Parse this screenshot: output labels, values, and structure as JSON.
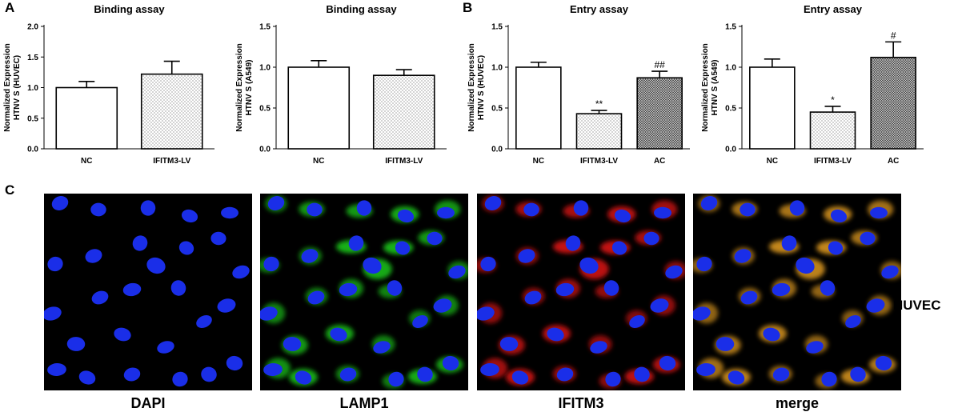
{
  "panels": [
    "A",
    "B",
    "C"
  ],
  "chart_data": [
    {
      "type": "bar",
      "title": "Binding assay",
      "ylabel_line1": "Normalized Expression",
      "ylabel_line2": "HTNV S (HUVEC)",
      "ylim": [
        0,
        2.0
      ],
      "yticks": [
        0,
        0.5,
        1.0,
        1.5,
        2.0
      ],
      "ytick_labels": [
        "0.0",
        "0.5",
        "1.0",
        "1.5",
        "2.0"
      ],
      "categories": [
        "NC",
        "IFITM3-LV"
      ],
      "values": [
        1.0,
        1.22
      ],
      "errors": [
        0.1,
        0.21
      ],
      "patterns": [
        "white",
        "dots"
      ],
      "annotations": [
        "",
        ""
      ]
    },
    {
      "type": "bar",
      "title": "Binding assay",
      "ylabel_line1": "Normalized Expression",
      "ylabel_line2": "HTNV S (A549)",
      "ylim": [
        0,
        1.5
      ],
      "yticks": [
        0,
        0.5,
        1.0,
        1.5
      ],
      "ytick_labels": [
        "0.0",
        "0.5",
        "1.0",
        "1.5"
      ],
      "categories": [
        "NC",
        "IFITM3-LV"
      ],
      "values": [
        1.0,
        0.9
      ],
      "errors": [
        0.08,
        0.07
      ],
      "patterns": [
        "white",
        "dots"
      ],
      "annotations": [
        "",
        ""
      ]
    },
    {
      "type": "bar",
      "title": "Entry assay",
      "ylabel_line1": "Normalized Expression",
      "ylabel_line2": "HTNV S (HUVEC)",
      "ylim": [
        0,
        1.5
      ],
      "yticks": [
        0,
        0.5,
        1.0,
        1.5
      ],
      "ytick_labels": [
        "0.0",
        "0.5",
        "1.0",
        "1.5"
      ],
      "categories": [
        "NC",
        "IFITM3-LV",
        "AC"
      ],
      "values": [
        1.0,
        0.43,
        0.87
      ],
      "errors": [
        0.06,
        0.04,
        0.08
      ],
      "patterns": [
        "white",
        "dots",
        "cross"
      ],
      "annotations": [
        "",
        "**",
        "##"
      ]
    },
    {
      "type": "bar",
      "title": "Entry assay",
      "ylabel_line1": "Normalized Expression",
      "ylabel_line2": "HTNV S (A549)",
      "ylim": [
        0,
        1.5
      ],
      "yticks": [
        0,
        0.5,
        1.0,
        1.5
      ],
      "ytick_labels": [
        "0.0",
        "0.5",
        "1.0",
        "1.5"
      ],
      "categories": [
        "NC",
        "IFITM3-LV",
        "AC"
      ],
      "values": [
        1.0,
        0.45,
        1.12
      ],
      "errors": [
        0.1,
        0.07,
        0.19
      ],
      "patterns": [
        "white",
        "dots",
        "cross"
      ],
      "annotations": [
        "",
        "*",
        "#"
      ]
    }
  ],
  "micrographs": [
    {
      "label": "DAPI",
      "stain": "dapi"
    },
    {
      "label": "LAMP1",
      "stain": "lamp1"
    },
    {
      "label": "IFITM3",
      "stain": "ifitm3"
    },
    {
      "label": "merge",
      "stain": "merge"
    }
  ],
  "cell_type": "HUVEC",
  "colors": {
    "nucleus": "#1a2ee8",
    "lamp1": "#1fd21f",
    "ifitm3": "#e81616",
    "merge": "#e8a020",
    "bar_edge": "#000000"
  }
}
